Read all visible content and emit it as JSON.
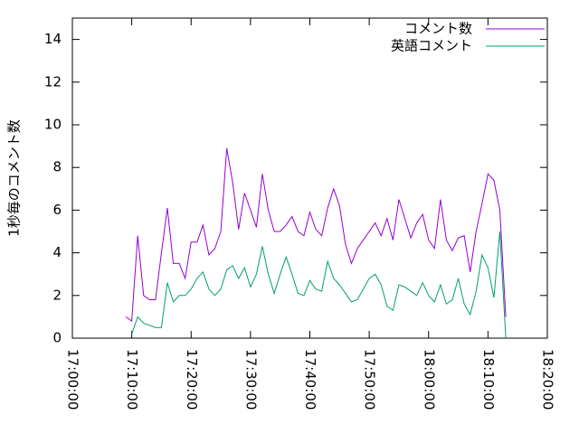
{
  "chart_data": {
    "type": "line",
    "y_label": "1秒毎のコメント数",
    "x": [
      "17:09:00",
      "17:10:00",
      "17:11:00",
      "17:12:00",
      "17:13:00",
      "17:14:00",
      "17:15:00",
      "17:16:00",
      "17:17:00",
      "17:18:00",
      "17:19:00",
      "17:20:00",
      "17:21:00",
      "17:22:00",
      "17:23:00",
      "17:24:00",
      "17:25:00",
      "17:26:00",
      "17:27:00",
      "17:28:00",
      "17:29:00",
      "17:30:00",
      "17:31:00",
      "17:32:00",
      "17:33:00",
      "17:34:00",
      "17:35:00",
      "17:36:00",
      "17:37:00",
      "17:38:00",
      "17:39:00",
      "17:40:00",
      "17:41:00",
      "17:42:00",
      "17:43:00",
      "17:44:00",
      "17:45:00",
      "17:46:00",
      "17:47:00",
      "17:48:00",
      "17:49:00",
      "17:50:00",
      "17:51:00",
      "17:52:00",
      "17:53:00",
      "17:54:00",
      "17:55:00",
      "17:56:00",
      "17:57:00",
      "17:58:00",
      "17:59:00",
      "18:00:00",
      "18:01:00",
      "18:02:00",
      "18:03:00",
      "18:04:00",
      "18:05:00",
      "18:06:00",
      "18:07:00",
      "18:08:00",
      "18:09:00",
      "18:10:00",
      "18:11:00",
      "18:12:00",
      "18:13:00"
    ],
    "series": [
      {
        "name": "コメント数",
        "color": "#9400d3",
        "values": [
          1.0,
          0.8,
          4.8,
          2.0,
          1.8,
          1.8,
          4.0,
          6.1,
          3.5,
          3.5,
          2.8,
          4.5,
          4.5,
          5.3,
          3.9,
          4.2,
          5.0,
          8.9,
          7.3,
          5.1,
          6.8,
          6.0,
          5.2,
          7.7,
          6.0,
          5.0,
          5.0,
          5.3,
          5.7,
          5.0,
          4.8,
          5.9,
          5.1,
          4.8,
          6.1,
          7.0,
          6.2,
          4.4,
          3.5,
          4.2,
          4.6,
          5.0,
          5.4,
          4.8,
          5.6,
          4.6,
          6.5,
          5.6,
          4.7,
          5.4,
          5.8,
          4.6,
          4.2,
          6.5,
          4.6,
          4.1,
          4.7,
          4.8,
          3.1,
          5.0,
          6.3,
          7.7,
          7.4,
          6.0,
          1.0
        ]
      },
      {
        "name": "英語コメント",
        "color": "#009e73",
        "values": [
          null,
          0.2,
          1.0,
          0.7,
          0.6,
          0.5,
          0.5,
          2.6,
          1.7,
          2.0,
          2.0,
          2.3,
          2.8,
          3.1,
          2.3,
          2.0,
          2.3,
          3.2,
          3.4,
          2.8,
          3.3,
          2.4,
          3.0,
          4.3,
          3.0,
          2.1,
          3.0,
          3.8,
          3.0,
          2.1,
          2.0,
          2.7,
          2.3,
          2.2,
          3.6,
          2.8,
          2.5,
          2.1,
          1.7,
          1.8,
          2.3,
          2.8,
          3.0,
          2.5,
          1.5,
          1.3,
          2.5,
          2.4,
          2.2,
          2.0,
          2.6,
          2.0,
          1.7,
          2.5,
          1.6,
          1.8,
          2.8,
          1.6,
          1.1,
          2.2,
          3.9,
          3.3,
          1.9,
          5.0,
          0.0
        ]
      }
    ],
    "xlim": [
      "17:00:00",
      "18:20:00"
    ],
    "xticks": [
      "17:00:00",
      "17:10:00",
      "17:20:00",
      "17:30:00",
      "17:40:00",
      "17:50:00",
      "18:00:00",
      "18:10:00",
      "18:20:00"
    ],
    "ylim": [
      0,
      15
    ],
    "yticks": [
      0,
      2,
      4,
      6,
      8,
      10,
      12,
      14
    ],
    "legend": "top-right",
    "grid": false
  }
}
